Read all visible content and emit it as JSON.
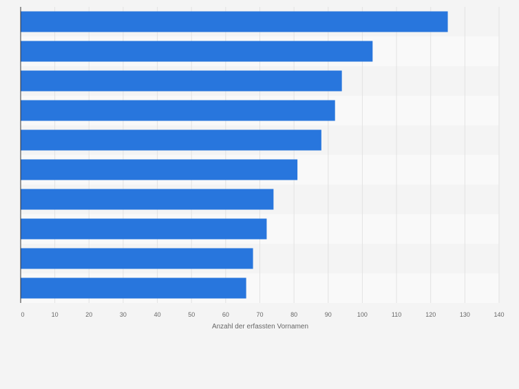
{
  "chart_data": {
    "type": "bar",
    "orientation": "horizontal",
    "categories": [
      "",
      "",
      "",
      "",
      "",
      "",
      "",
      "",
      "",
      ""
    ],
    "values": [
      125,
      103,
      94,
      92,
      88,
      81,
      74,
      72,
      68,
      66
    ],
    "title": "",
    "xlabel": "Anzahl der erfassten Vornamen",
    "ylabel": "",
    "xlim": [
      0,
      140
    ],
    "xticks": [
      0,
      10,
      20,
      30,
      40,
      50,
      60,
      70,
      80,
      90,
      100,
      110,
      120,
      130,
      140
    ],
    "grid": true,
    "legend": "none",
    "colors": {
      "bar": "#2876dd",
      "band_dark": "#f4f4f4",
      "band_light": "#f9f9f9",
      "page": "#f4f4f4",
      "grid": "#e2e2e2",
      "axis": "#333333",
      "tick_label": "#666666"
    }
  }
}
